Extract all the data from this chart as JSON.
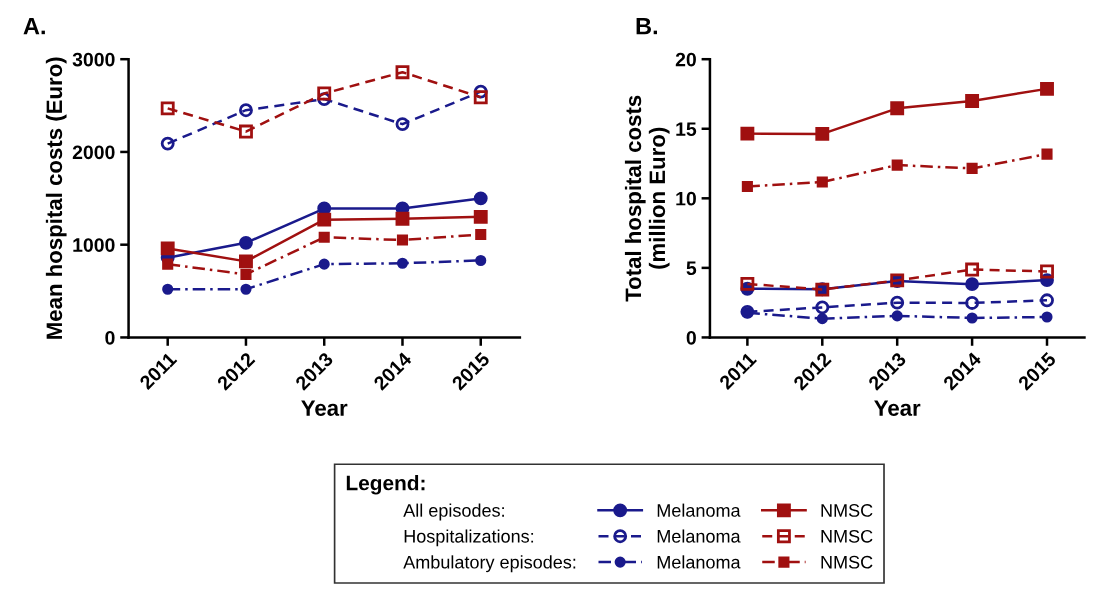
{
  "chart_data": [
    {
      "type": "line",
      "title": "A.",
      "xlabel": "Year",
      "ylabel": "Mean hospital costs (Euro)",
      "categories": [
        "2011",
        "2012",
        "2013",
        "2014",
        "2015"
      ],
      "ylim": [
        0,
        3000
      ],
      "yticks": [
        0,
        1000,
        2000,
        3000
      ],
      "grid": false,
      "legend": "bottom",
      "legend_title": "Legend:",
      "annotations": [
        "All episodes:",
        "Hospitalizations:",
        "Ambulatory episodes:"
      ],
      "series": [
        {
          "name": "Melanoma",
          "color": "#1a1a8c",
          "marker": "circle",
          "line_style": "solid",
          "values": [
            860,
            1020,
            1390,
            1390,
            1500
          ]
        },
        {
          "name": "NMSC",
          "color": "#a01010",
          "marker": "square",
          "line_style": "solid",
          "values": [
            960,
            820,
            1270,
            1280,
            1300
          ]
        },
        {
          "name": "Melanoma",
          "color": "#1a1a8c",
          "marker": "circle",
          "line_style": "dashed",
          "values": [
            2090,
            2450,
            2570,
            2300,
            2650
          ]
        },
        {
          "name": "NMSC",
          "color": "#a01010",
          "marker": "square",
          "line_style": "dashed",
          "values": [
            2470,
            2220,
            2630,
            2860,
            2590
          ]
        },
        {
          "name": "Melanoma",
          "color": "#1a1a8c",
          "marker": "circle",
          "line_style": "dashdot",
          "values": [
            520,
            520,
            790,
            800,
            830
          ]
        },
        {
          "name": "NMSC",
          "color": "#a01010",
          "marker": "square",
          "line_style": "dashdot",
          "values": [
            790,
            680,
            1080,
            1050,
            1110
          ]
        }
      ]
    },
    {
      "type": "line",
      "title": "B.",
      "xlabel": "Year",
      "ylabel": "Total hospital costs\n(million Euro)",
      "categories": [
        "2011",
        "2012",
        "2013",
        "2014",
        "2015"
      ],
      "ylim": [
        0,
        20
      ],
      "yticks": [
        0,
        5,
        10,
        15,
        20
      ],
      "grid": false,
      "series": [
        {
          "color": "#1a1a8c",
          "marker": "circle",
          "line_style": "solid",
          "values": [
            3.5,
            3.46,
            4.05,
            3.83,
            4.12
          ]
        },
        {
          "color": "#a01010",
          "marker": "square",
          "line_style": "solid",
          "values": [
            14.65,
            14.63,
            16.47,
            17.0,
            17.87
          ]
        },
        {
          "color": "#1a1a8c",
          "marker": "circle",
          "line_style": "dashed",
          "values": [
            1.84,
            2.16,
            2.5,
            2.48,
            2.67
          ]
        },
        {
          "color": "#a01010",
          "marker": "square",
          "line_style": "dashed",
          "values": [
            3.85,
            3.44,
            4.1,
            4.88,
            4.74
          ]
        },
        {
          "color": "#1a1a8c",
          "marker": "circle",
          "line_style": "dashdot",
          "values": [
            1.77,
            1.35,
            1.55,
            1.4,
            1.47
          ]
        },
        {
          "color": "#a01010",
          "marker": "square",
          "line_style": "dashdot",
          "values": [
            10.85,
            11.17,
            12.39,
            12.15,
            13.18
          ]
        }
      ]
    }
  ]
}
